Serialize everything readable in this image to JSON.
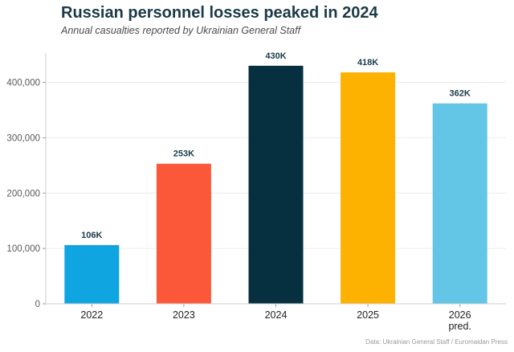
{
  "chart_data": {
    "type": "bar",
    "title": "Russian personnel losses peaked in 2024",
    "subtitle": "Annual casualties reported by Ukrainian General Staff",
    "source": "Data: Ukrainian General Staff / Euromaidan Press",
    "categories": [
      [
        "2022"
      ],
      [
        "2023"
      ],
      [
        "2024"
      ],
      [
        "2025"
      ],
      [
        "2026",
        "pred."
      ]
    ],
    "values": [
      106000,
      253000,
      430000,
      418000,
      362000
    ],
    "data_labels": [
      "106K",
      "253K",
      "430K",
      "418K",
      "362K"
    ],
    "colors": [
      "#0ea5e0",
      "#fa5838",
      "#06303f",
      "#fdb100",
      "#63c6e6"
    ],
    "yticks": [
      0,
      100000,
      200000,
      300000,
      400000
    ],
    "ytick_labels": [
      "0",
      "100,000",
      "200,000",
      "300,000",
      "400,000"
    ],
    "ylim": [
      0,
      440000
    ],
    "grid": true
  }
}
